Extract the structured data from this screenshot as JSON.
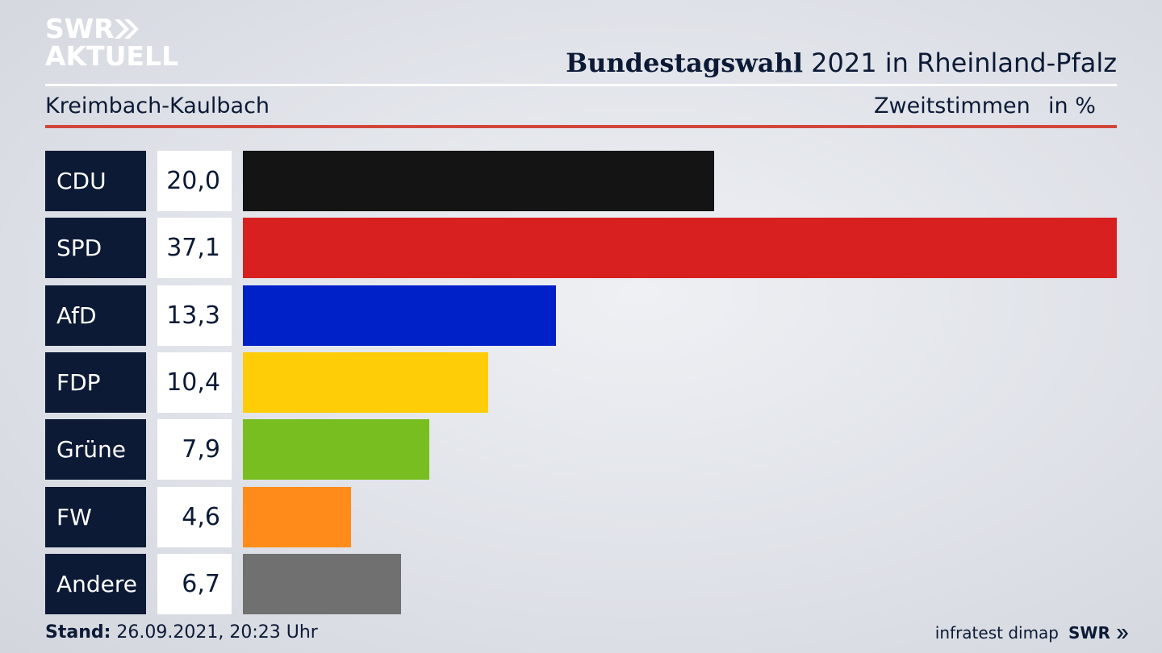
{
  "brand": {
    "logo_line1": "SWR",
    "logo_line2": "AKTUELL",
    "footer_logo": "SWR"
  },
  "header": {
    "title_bold": "Bundestagswahl",
    "title_rest": " 2021 in Rheinland-Pfalz",
    "region": "Kreimbach-Kaulbach",
    "vote_type": "Zweitstimmen",
    "unit": "in %"
  },
  "chart_data": {
    "type": "bar",
    "orientation": "horizontal",
    "categories": [
      "CDU",
      "SPD",
      "AfD",
      "FDP",
      "Grüne",
      "FW",
      "Andere"
    ],
    "values": [
      20.0,
      37.1,
      13.3,
      10.4,
      7.9,
      4.6,
      6.7
    ],
    "value_labels": [
      "20,0",
      "37,1",
      "13,3",
      "10,4",
      "7,9",
      "4,6",
      "6,7"
    ],
    "colors": [
      "#141414",
      "#d82020",
      "#0020c8",
      "#ffcc08",
      "#78be20",
      "#ff8c1a",
      "#707070"
    ],
    "xlim": [
      0,
      37.1
    ],
    "grid": false
  },
  "footer": {
    "stand_label": "Stand:",
    "stand_value": " 26.09.2021, 20:23 Uhr",
    "source": "infratest dimap"
  }
}
